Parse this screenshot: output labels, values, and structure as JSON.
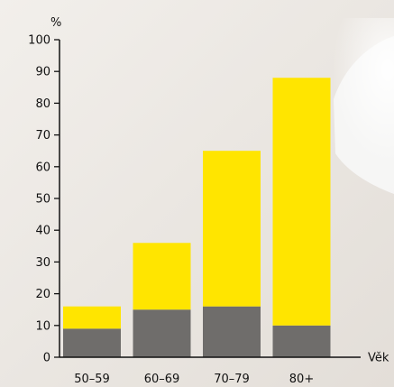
{
  "chart_data": {
    "type": "bar",
    "stacked": true,
    "categories": [
      "50–59",
      "60–69",
      "70–79",
      "80+"
    ],
    "series": [
      {
        "values": [
          9,
          15,
          16,
          10
        ],
        "color": "#6f6d6b"
      },
      {
        "values": [
          7,
          21,
          49,
          78
        ],
        "color": "#ffe500"
      }
    ],
    "totals": [
      16,
      36,
      65,
      88
    ],
    "ylim": [
      0,
      100
    ],
    "yticks": [
      0,
      10,
      20,
      30,
      40,
      50,
      60,
      70,
      80,
      90,
      100
    ],
    "ylabel": "%",
    "xlabel": "Věk",
    "grid": false,
    "legend": "none"
  },
  "colors": {
    "background": "#ece8e3",
    "axis": "#111111"
  }
}
